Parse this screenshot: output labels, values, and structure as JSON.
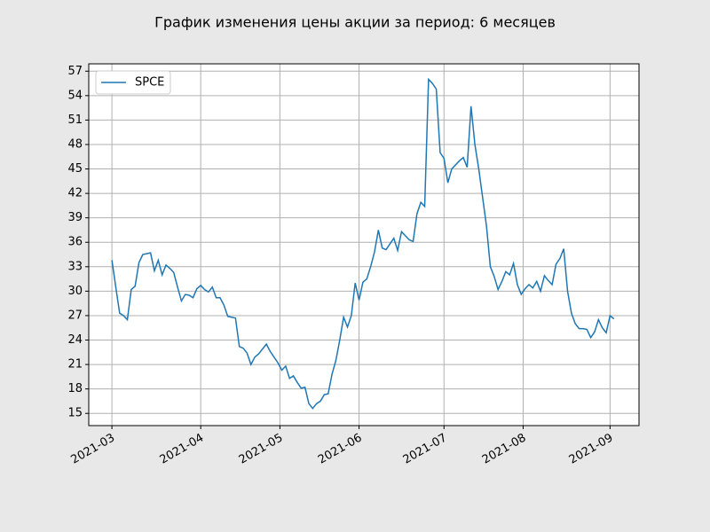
{
  "chart_data": {
    "type": "line",
    "title": "График изменения цены акции за период: 6 месяцев",
    "series": [
      {
        "name": "SPCE",
        "color": "#1f77b4",
        "values": [
          33.8,
          30.5,
          27.3,
          27.0,
          26.5,
          30.2,
          30.6,
          33.5,
          34.5,
          34.6,
          34.7,
          32.5,
          33.8,
          32.0,
          33.2,
          32.8,
          32.3,
          30.5,
          28.8,
          29.6,
          29.5,
          29.2,
          30.3,
          30.7,
          30.2,
          29.9,
          30.5,
          29.2,
          29.2,
          28.3,
          26.9,
          26.8,
          26.7,
          23.2,
          23.0,
          22.4,
          21.0,
          21.9,
          22.3,
          22.9,
          23.5,
          22.6,
          21.9,
          21.2,
          20.3,
          20.8,
          19.3,
          19.6,
          18.8,
          18.1,
          18.2,
          16.2,
          15.6,
          16.2,
          16.5,
          17.3,
          17.4,
          19.8,
          21.5,
          24.0,
          26.8,
          25.6,
          27.0,
          31.0,
          28.9,
          31.1,
          31.5,
          33.0,
          34.8,
          37.5,
          35.3,
          35.1,
          35.8,
          36.5,
          35.0,
          37.3,
          36.8,
          36.3,
          36.1,
          39.5,
          40.9,
          40.4,
          56.0,
          55.5,
          54.8,
          47.0,
          46.3,
          43.3,
          45.0,
          45.5,
          46.0,
          46.4,
          45.2,
          52.7,
          48.0,
          45.0,
          41.5,
          38.0,
          33.0,
          31.8,
          30.2,
          31.2,
          32.4,
          32.0,
          33.4,
          30.8,
          29.6,
          30.3,
          30.8,
          30.4,
          31.2,
          30.0,
          31.9,
          31.3,
          30.8,
          33.3,
          34.0,
          35.2,
          30.0,
          27.3,
          26.0,
          25.4,
          25.4,
          25.3,
          24.3,
          25.0,
          26.5,
          25.5,
          24.9,
          27.0,
          26.6
        ]
      }
    ],
    "xlim": [
      -6,
      136.5
    ],
    "xticks": [
      {
        "value": 0,
        "label": "2021-03"
      },
      {
        "value": 23,
        "label": "2021-04"
      },
      {
        "value": 43.5,
        "label": "2021-05"
      },
      {
        "value": 64,
        "label": "2021-06"
      },
      {
        "value": 86,
        "label": "2021-07"
      },
      {
        "value": 106.5,
        "label": "2021-08"
      },
      {
        "value": 129,
        "label": "2021-09"
      }
    ],
    "ylim": [
      13.5,
      57.9
    ],
    "yticks": [
      15,
      18,
      21,
      24,
      27,
      30,
      33,
      36,
      39,
      42,
      45,
      48,
      51,
      54,
      57
    ],
    "grid": true,
    "legend": "upper left"
  }
}
